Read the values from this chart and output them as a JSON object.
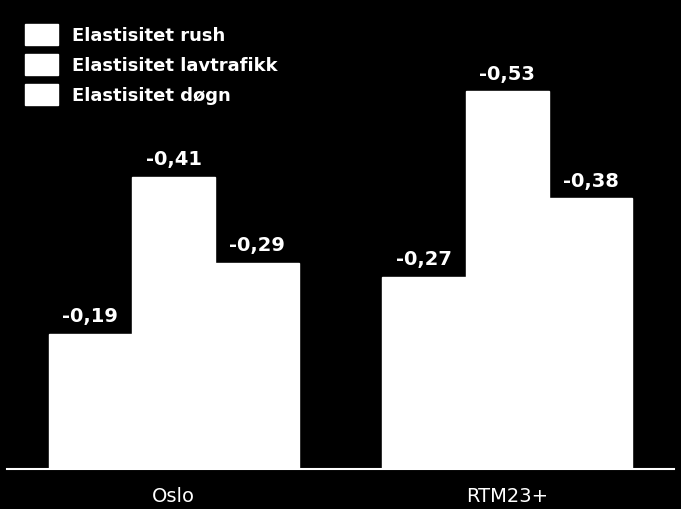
{
  "groups": [
    "Oslo",
    "RTM23+"
  ],
  "categories": [
    "Elastisitet rush",
    "Elastisitet lavtrafikk",
    "Elastisitet døgn"
  ],
  "values": {
    "Oslo": [
      0.19,
      0.41,
      0.29
    ],
    "RTM23+": [
      0.27,
      0.53,
      0.38
    ]
  },
  "labels": {
    "Oslo": [
      "-0,19",
      "-0,41",
      "-0,29"
    ],
    "RTM23+": [
      "-0,27",
      "-0,53",
      "-0,38"
    ]
  },
  "bar_color": "#ffffff",
  "background_color": "#000000",
  "text_color": "#ffffff",
  "ylim_max": 0.65,
  "legend_labels": [
    "Elastisitet rush",
    "Elastisitet lavtrafikk",
    "Elastisitet døgn"
  ],
  "group_labels": [
    "Oslo",
    "RTM23+"
  ],
  "label_fontsize": 14,
  "tick_fontsize": 14,
  "legend_fontsize": 13
}
